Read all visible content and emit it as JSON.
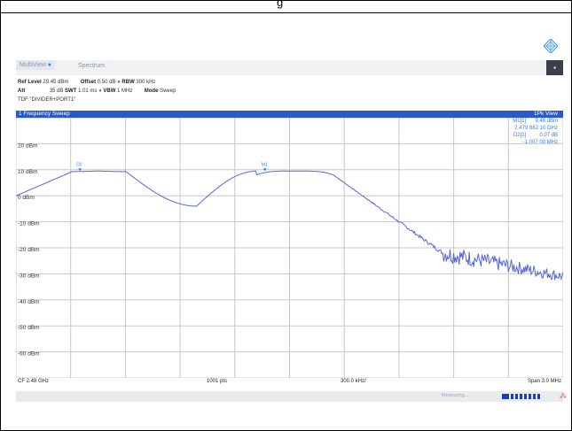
{
  "header": {
    "glyph": "g"
  },
  "tabs": [
    {
      "label": "MultiView",
      "active": true
    },
    {
      "label": "Spectrum",
      "active": false
    }
  ],
  "toggle": {
    "label": "▪"
  },
  "params": {
    "ref_level_label": "Ref Level",
    "ref_level_value": "29.45 dBm",
    "offset_label": "Offset",
    "offset_value": "0.50 dB",
    "rbw_label": "RBW",
    "rbw_value": "300 kHz",
    "att_label": "Att",
    "att_value": "35 dB",
    "swt_label": "SWT",
    "swt_value": "1.01 ms",
    "vbw_label": "VBW",
    "vbw_value": "1 MHz",
    "mode_label": "Mode",
    "mode_value": "Sweep",
    "tdf": "TDF \"DIVIDER+PORT1\""
  },
  "sweep": {
    "title": "1 Frequency Sweep",
    "view": "1Pk View"
  },
  "markers": {
    "m1_name": "M1[1]",
    "m1_level": "9.48 dBm",
    "m1_freq": "2.479 862 10 GHz",
    "d2_name": "D2[1]",
    "d2_level": "0.07 dB",
    "d2_freq": "-1.007 00 MHz"
  },
  "y_labels": [
    "20 dBm",
    "10 dBm",
    "0 dBm",
    "-10 dBm",
    "-20 dBm",
    "-30 dBm",
    "-40 dBm",
    "-50 dBm",
    "-60 dBm"
  ],
  "trace_color": "#5567d6",
  "marker_labels": {
    "d2": "D2",
    "m1": "M1"
  },
  "bottom": {
    "cf": "CF 2.48 GHz",
    "pts": "1001 pts",
    "div": "300.0 kHz/",
    "span": "Span 3.0 MHz"
  },
  "status": {
    "text": "Measuring...",
    "warn": "⁂"
  }
}
